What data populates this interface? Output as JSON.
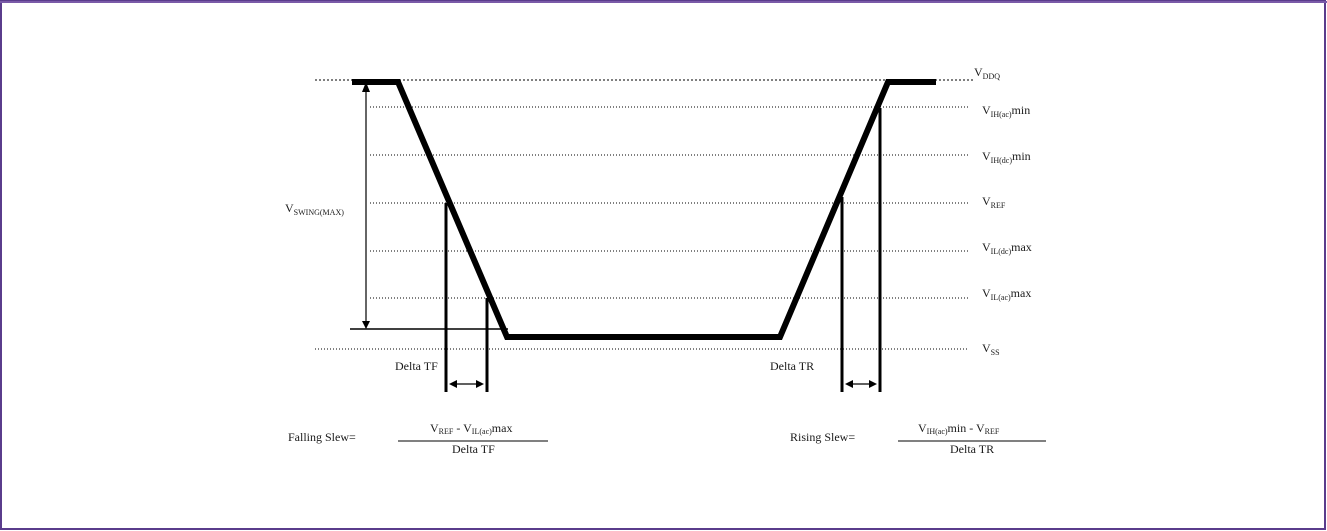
{
  "levels": {
    "vddq": {
      "main": "V",
      "sub": "DDQ",
      "suffix": ""
    },
    "vih_ac": {
      "main": "V",
      "sub": "IH(ac)",
      "suffix": "min"
    },
    "vih_dc": {
      "main": "V",
      "sub": "IH(dc)",
      "suffix": "min"
    },
    "vref": {
      "main": "V",
      "sub": "REF",
      "suffix": ""
    },
    "vil_dc": {
      "main": "V",
      "sub": "IL(dc)",
      "suffix": "max"
    },
    "vil_ac": {
      "main": "V",
      "sub": "IL(ac)",
      "suffix": "max"
    },
    "vss": {
      "main": "V",
      "sub": "SS",
      "suffix": ""
    }
  },
  "vswing": {
    "main": "V",
    "sub": "SWING(MAX)"
  },
  "delta_tf": "Delta TF",
  "delta_tr": "Delta TR",
  "falling": {
    "label": "Falling Slew=",
    "num_v1": "V",
    "num_s1": "REF",
    "num_mid": " - V",
    "num_s2": "IL(ac)",
    "num_end": "max",
    "den": "Delta TF"
  },
  "rising": {
    "label": "Rising Slew=",
    "num_v1": "V",
    "num_s1": "IH(ac)",
    "num_mid": "min - V",
    "num_s2": "REF",
    "num_end": "",
    "den": "Delta TR"
  },
  "colors": {
    "border": "#5a3c8c",
    "line": "#000000",
    "text": "#1a1a1a"
  }
}
